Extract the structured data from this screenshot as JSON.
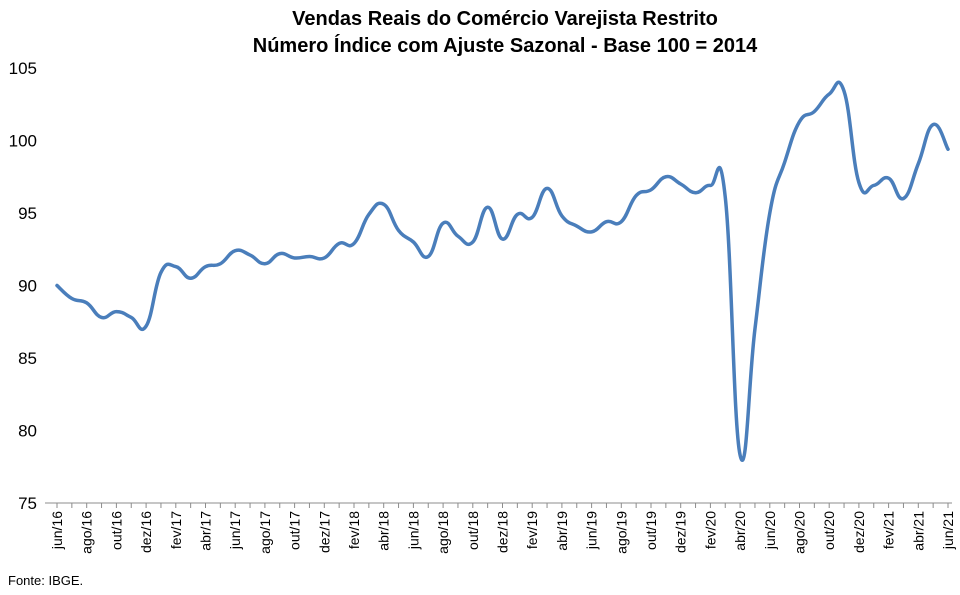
{
  "title": "Vendas Reais do Comércio Varejista Restrito",
  "subtitle": "Número Índice com Ajuste Sazonal - Base 100 = 2014",
  "source": "Fonte: IBGE.",
  "line_color": "#4a7ebb",
  "chart_data": {
    "type": "line",
    "title": "Vendas Reais do Comércio Varejista Restrito",
    "subtitle": "Número Índice com Ajuste Sazonal - Base 100 = 2014",
    "xlabel": "",
    "ylabel": "",
    "ylim": [
      75,
      105
    ],
    "yticks": [
      75,
      80,
      85,
      90,
      95,
      100,
      105
    ],
    "grid": false,
    "legend": "none",
    "x": [
      "jun/16",
      "jul/16",
      "ago/16",
      "set/16",
      "out/16",
      "nov/16",
      "dez/16",
      "jan/17",
      "fev/17",
      "mar/17",
      "abr/17",
      "mai/17",
      "jun/17",
      "jul/17",
      "ago/17",
      "set/17",
      "out/17",
      "nov/17",
      "dez/17",
      "jan/18",
      "fev/18",
      "mar/18",
      "abr/18",
      "mai/18",
      "jun/18",
      "jul/18",
      "ago/18",
      "set/18",
      "out/18",
      "nov/18",
      "dez/18",
      "jan/19",
      "fev/19",
      "mar/19",
      "abr/19",
      "mai/19",
      "jun/19",
      "jul/19",
      "ago/19",
      "set/19",
      "out/19",
      "nov/19",
      "dez/19",
      "jan/20",
      "fev/20",
      "mar/20",
      "abr/20",
      "mai/20",
      "jun/20",
      "jul/20",
      "ago/20",
      "set/20",
      "out/20",
      "nov/20",
      "dez/20",
      "jan/21",
      "fev/21",
      "mar/21",
      "abr/21",
      "mai/21",
      "jun/21"
    ],
    "x_tick_labels": [
      "jun/16",
      "ago/16",
      "out/16",
      "dez/16",
      "fev/17",
      "abr/17",
      "jun/17",
      "ago/17",
      "out/17",
      "dez/17",
      "fev/18",
      "abr/18",
      "jun/18",
      "ago/18",
      "out/18",
      "dez/18",
      "fev/19",
      "abr/19",
      "jun/19",
      "ago/19",
      "out/19",
      "dez/19",
      "fev/20",
      "abr/20",
      "jun/20",
      "ago/20",
      "out/20",
      "dez/20",
      "fev/21",
      "abr/21",
      "jun/21"
    ],
    "series": [
      {
        "values": [
          90.0,
          89.1,
          88.8,
          87.8,
          88.2,
          87.8,
          87.2,
          90.9,
          91.3,
          90.5,
          91.3,
          91.5,
          92.4,
          92.1,
          91.5,
          92.2,
          91.9,
          92.0,
          91.9,
          92.9,
          92.9,
          94.9,
          95.6,
          93.8,
          93.0,
          92.0,
          94.3,
          93.4,
          93.0,
          95.4,
          93.2,
          94.9,
          94.7,
          96.7,
          94.8,
          94.1,
          93.7,
          94.4,
          94.4,
          96.2,
          96.6,
          97.5,
          97.0,
          96.4,
          96.9,
          96.1,
          78.3,
          87.0,
          95.0,
          98.5,
          101.3,
          102.0,
          103.2,
          103.4,
          97.1,
          96.9,
          97.4,
          96.0,
          98.4,
          101.1,
          99.4
        ]
      }
    ]
  }
}
